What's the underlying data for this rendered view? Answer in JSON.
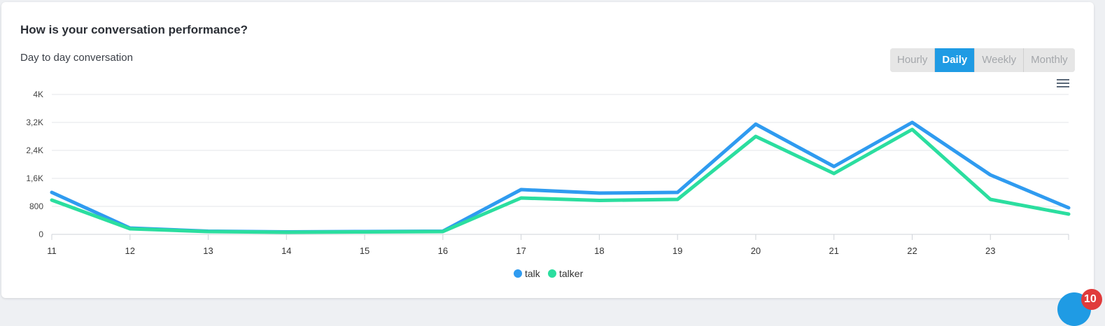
{
  "header": {
    "title": "How is your conversation performance?",
    "subtitle": "Day to day conversation"
  },
  "range_toggle": {
    "options": [
      "Hourly",
      "Daily",
      "Weekly",
      "Monthly"
    ],
    "selected": "Daily"
  },
  "colors": {
    "talk": "#2f9bf0",
    "talker": "#2bde9f",
    "active_tab": "#1f9be4"
  },
  "chart_data": {
    "type": "line",
    "title": "",
    "xlabel": "",
    "ylabel": "",
    "categories": [
      "11",
      "12",
      "13",
      "14",
      "15",
      "16",
      "17",
      "18",
      "19",
      "20",
      "21",
      "22",
      "23",
      ""
    ],
    "y_ticks": [
      0,
      800,
      1600,
      2400,
      3200,
      4000
    ],
    "y_tick_labels": [
      "0",
      "800",
      "1,6K",
      "2,4K",
      "3,2K",
      "4K"
    ],
    "ylim": [
      0,
      4000
    ],
    "grid": true,
    "legend_position": "bottom-center",
    "series": [
      {
        "name": "talk",
        "color": "#2f9bf0",
        "values": [
          1200,
          180,
          90,
          70,
          80,
          90,
          1280,
          1180,
          1200,
          3150,
          1940,
          3200,
          1700,
          760
        ]
      },
      {
        "name": "talker",
        "color": "#2bde9f",
        "values": [
          980,
          160,
          80,
          60,
          70,
          80,
          1040,
          970,
          1000,
          2800,
          1740,
          3000,
          1000,
          580
        ]
      }
    ]
  },
  "notification_count": "10"
}
